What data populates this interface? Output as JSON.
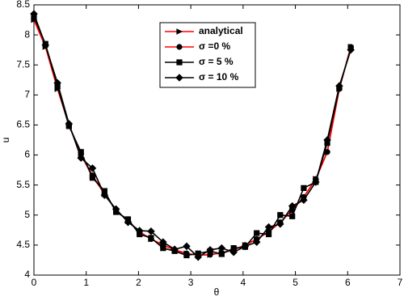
{
  "chart_data": {
    "type": "line",
    "xlabel": "θ",
    "ylabel": "u",
    "x": [
      0,
      0.22,
      0.45,
      0.67,
      0.9,
      1.12,
      1.35,
      1.57,
      1.8,
      2.02,
      2.24,
      2.47,
      2.69,
      2.92,
      3.14,
      3.37,
      3.59,
      3.82,
      4.04,
      4.26,
      4.49,
      4.71,
      4.94,
      5.16,
      5.39,
      5.61,
      5.84,
      6.06
    ],
    "series": [
      {
        "name": "analytical",
        "color": "#ff0000",
        "marker": "triangle-right",
        "values": [
          8.25,
          7.8,
          7.1,
          6.5,
          6.0,
          5.65,
          5.35,
          5.08,
          4.9,
          4.72,
          4.6,
          4.5,
          4.42,
          4.36,
          4.33,
          4.34,
          4.37,
          4.42,
          4.5,
          4.6,
          4.72,
          4.88,
          5.08,
          5.3,
          5.6,
          6.05,
          7.1,
          7.8
        ]
      },
      {
        "name": "σ =0 %",
        "color": "#ff0000",
        "marker": "circle",
        "values": [
          8.27,
          7.82,
          7.12,
          6.5,
          6.02,
          5.66,
          5.36,
          5.08,
          4.9,
          4.72,
          4.6,
          4.5,
          4.42,
          4.36,
          4.33,
          4.34,
          4.37,
          4.42,
          4.5,
          4.6,
          4.72,
          4.88,
          5.08,
          5.3,
          5.6,
          6.05,
          7.1,
          7.8
        ]
      },
      {
        "name": "σ = 5 %",
        "color": "#000000",
        "marker": "square",
        "values": [
          8.3,
          7.85,
          7.15,
          6.48,
          6.05,
          5.62,
          5.4,
          5.05,
          4.93,
          4.68,
          4.62,
          4.45,
          4.4,
          4.33,
          4.36,
          4.4,
          4.35,
          4.45,
          4.47,
          4.7,
          4.68,
          5.0,
          4.98,
          5.45,
          5.55,
          6.2,
          7.12,
          7.78
        ]
      },
      {
        "name": "σ = 10 %",
        "color": "#000000",
        "marker": "diamond",
        "values": [
          8.35,
          7.83,
          7.2,
          6.52,
          5.95,
          5.78,
          5.33,
          5.1,
          4.88,
          4.74,
          4.73,
          4.55,
          4.43,
          4.48,
          4.3,
          4.42,
          4.45,
          4.38,
          4.48,
          4.55,
          4.8,
          4.85,
          5.15,
          5.25,
          5.55,
          6.25,
          7.15,
          7.75
        ]
      }
    ],
    "xlim": [
      0,
      7
    ],
    "xticks": [
      0,
      1,
      2,
      3,
      4,
      5,
      6,
      7
    ],
    "ylim": [
      4,
      8.5
    ],
    "yticks": [
      4,
      4.5,
      5,
      5.5,
      6,
      6.5,
      7,
      7.5,
      8,
      8.5
    ],
    "grid": false,
    "legend": "top-center"
  }
}
